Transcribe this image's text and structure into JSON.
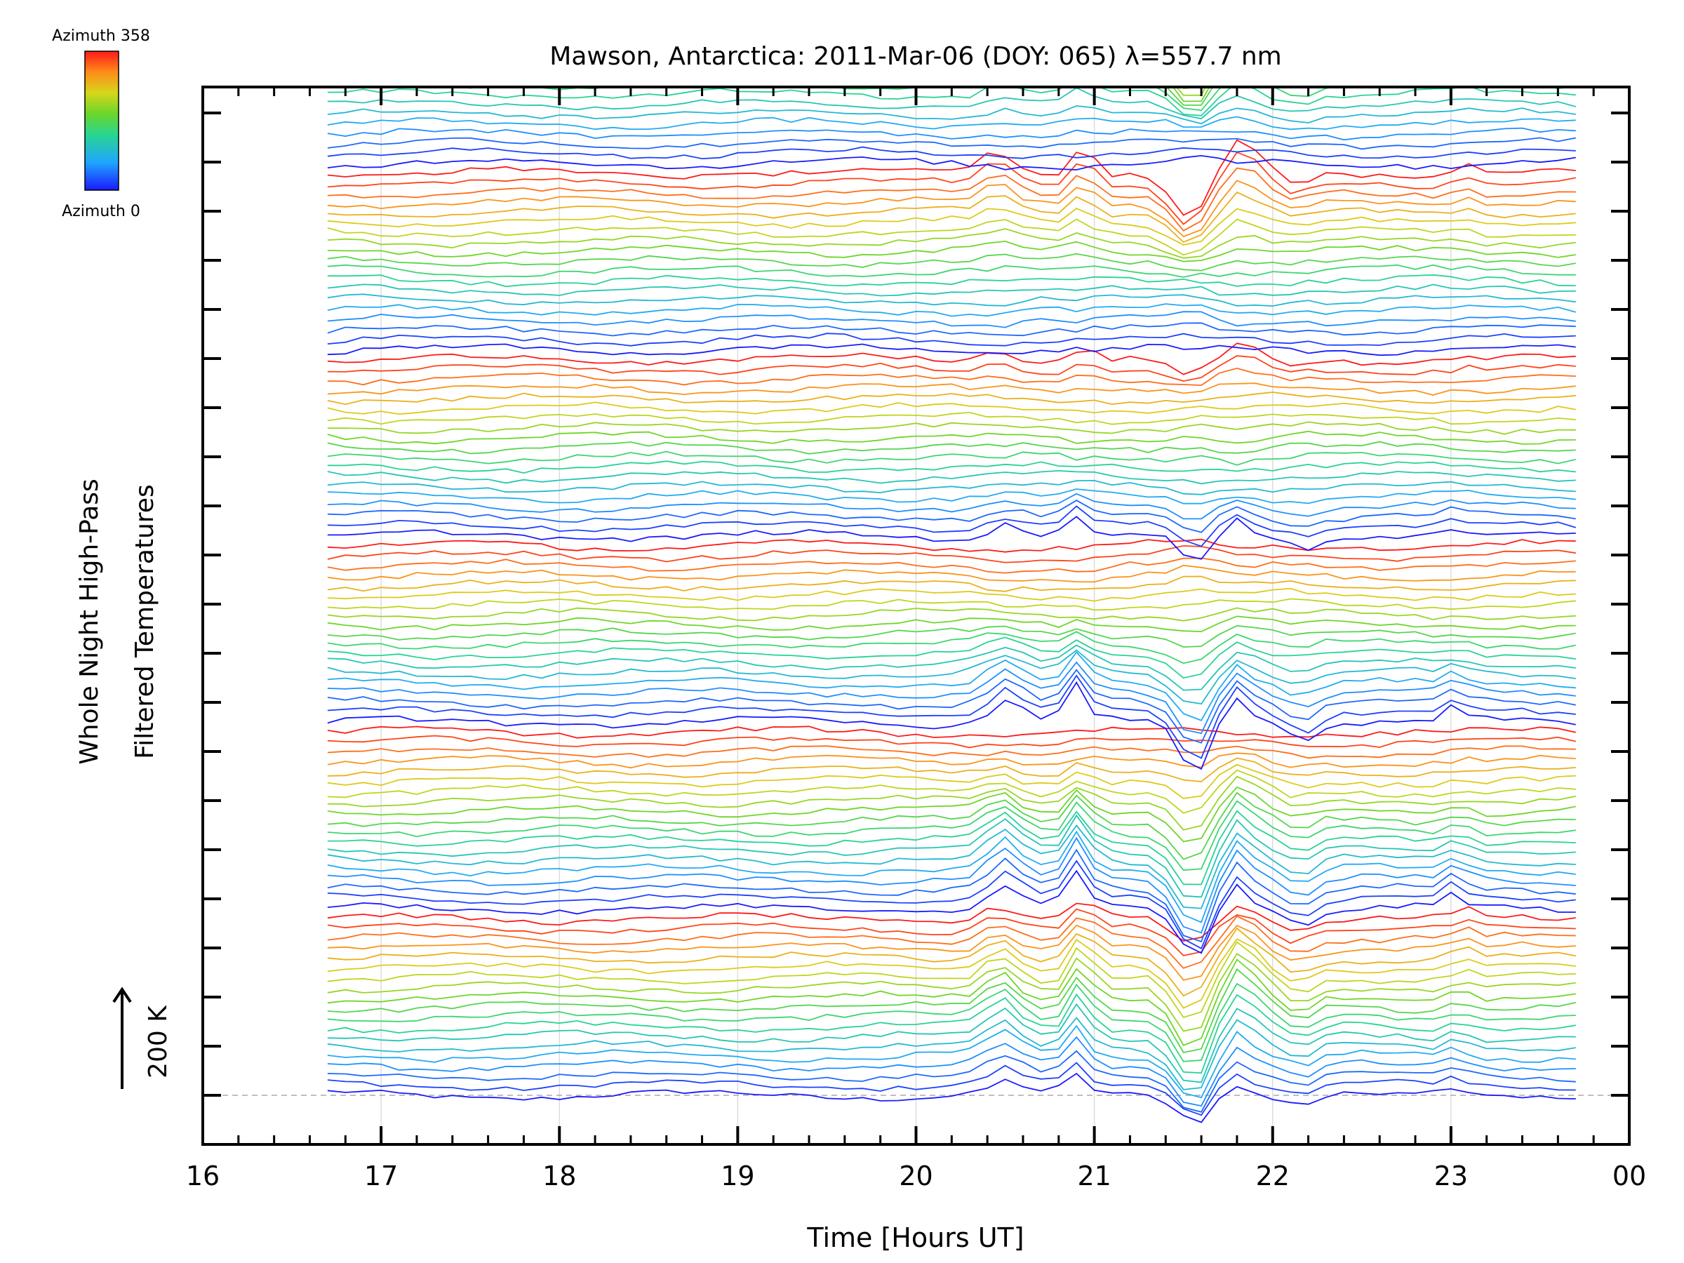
{
  "chart_data": {
    "type": "line",
    "title": "Mawson, Antarctica: 2011-Mar-06 (DOY: 065) λ=557.7 nm",
    "xlabel": "Time [Hours UT]",
    "ylabel_line1": "Whole Night High-Pass",
    "ylabel_line2": "Filtered Temperatures",
    "xlim": [
      16,
      24
    ],
    "x_ticks": [
      "16",
      "17",
      "18",
      "19",
      "20",
      "21",
      "22",
      "23",
      "00"
    ],
    "x_tick_values": [
      16,
      17,
      18,
      19,
      20,
      21,
      22,
      23,
      24
    ],
    "scale_label": "200 K",
    "colorbar": {
      "top_label": "Azimuth  358",
      "bottom_label": "Azimuth  0",
      "min": 0,
      "max": 358
    },
    "grid": true,
    "time_start_hour": 16.7,
    "time_end_hour": 23.75,
    "time_step_hours": 0.1,
    "series_count": 132,
    "stack_groups": 7,
    "series_offset_K": 33.3,
    "events": [
      {
        "time": 20.48,
        "amplitude_K": 55,
        "width_h": 0.12
      },
      {
        "time": 20.92,
        "amplitude_K": 75,
        "width_h": 0.08
      },
      {
        "time": 21.55,
        "amplitude_K": -110,
        "width_h": 0.14
      },
      {
        "time": 21.8,
        "amplitude_K": 70,
        "width_h": 0.12
      },
      {
        "time": 22.15,
        "amplitude_K": -35,
        "width_h": 0.1
      },
      {
        "time": 23.05,
        "amplitude_K": 30,
        "width_h": 0.06
      }
    ]
  }
}
